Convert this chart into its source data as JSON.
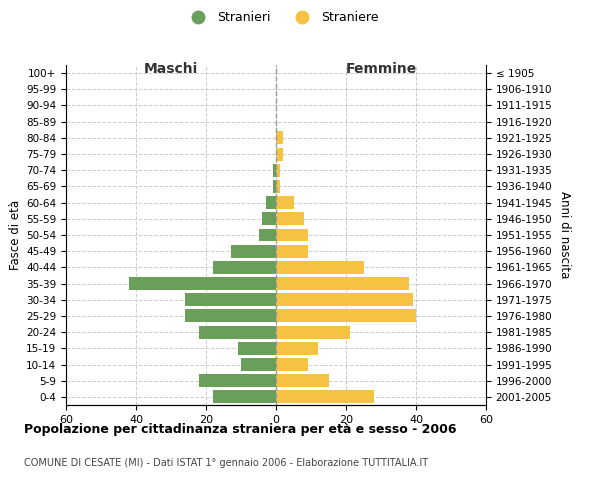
{
  "age_groups": [
    "100+",
    "95-99",
    "90-94",
    "85-89",
    "80-84",
    "75-79",
    "70-74",
    "65-69",
    "60-64",
    "55-59",
    "50-54",
    "45-49",
    "40-44",
    "35-39",
    "30-34",
    "25-29",
    "20-24",
    "15-19",
    "10-14",
    "5-9",
    "0-4"
  ],
  "birth_years": [
    "≤ 1905",
    "1906-1910",
    "1911-1915",
    "1916-1920",
    "1921-1925",
    "1926-1930",
    "1931-1935",
    "1936-1940",
    "1941-1945",
    "1946-1950",
    "1951-1955",
    "1956-1960",
    "1961-1965",
    "1966-1970",
    "1971-1975",
    "1976-1980",
    "1981-1985",
    "1986-1990",
    "1991-1995",
    "1996-2000",
    "2001-2005"
  ],
  "maschi": [
    0,
    0,
    0,
    0,
    0,
    0,
    1,
    1,
    3,
    4,
    5,
    13,
    18,
    42,
    26,
    26,
    22,
    11,
    10,
    22,
    18
  ],
  "femmine": [
    0,
    0,
    0,
    0,
    2,
    2,
    1,
    1,
    5,
    8,
    9,
    9,
    25,
    38,
    39,
    40,
    21,
    12,
    9,
    15,
    28
  ],
  "maschi_color": "#6a9e5b",
  "femmine_color": "#f5c242",
  "background_color": "#ffffff",
  "grid_color": "#cccccc",
  "xlim": 60,
  "title": "Popolazione per cittadinanza straniera per età e sesso - 2006",
  "subtitle": "COMUNE DI CESATE (MI) - Dati ISTAT 1° gennaio 2006 - Elaborazione TUTTITALIA.IT",
  "xlabel_left": "Maschi",
  "xlabel_right": "Femmine",
  "ylabel_left": "Fasce di età",
  "ylabel_right": "Anni di nascita",
  "legend_maschi": "Stranieri",
  "legend_femmine": "Straniere",
  "bar_height": 0.8
}
